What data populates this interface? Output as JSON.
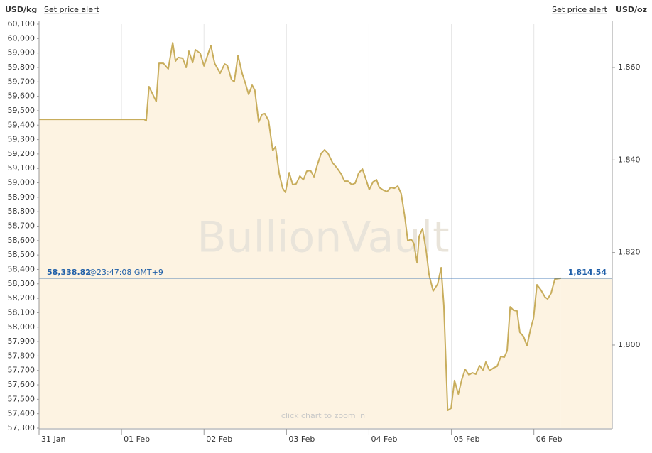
{
  "header": {
    "left_unit": "USD/kg",
    "left_link": "Set price alert",
    "right_link": "Set price alert",
    "right_unit": "USD/oz"
  },
  "watermark": "BullionVault",
  "hint": "click chart to zoom in",
  "chart_data": {
    "type": "line",
    "color": "#c8ad5c",
    "area_color": "#fdf3e2",
    "grid": "x",
    "x": [
      0,
      30.6,
      31.2,
      32.0,
      34.1,
      34.9,
      36.2,
      37.6,
      38.9,
      39.7,
      40.5,
      41.8,
      42.8,
      43.6,
      44.7,
      45.5,
      46.9,
      48.0,
      50.0,
      51.1,
      52.7,
      54.0,
      54.8,
      56.0,
      56.8,
      57.9,
      59.1,
      59.9,
      61.0,
      62.0,
      62.8,
      63.9,
      64.9,
      65.7,
      66.8,
      68.0,
      68.8,
      69.9,
      70.9,
      71.7,
      72.8,
      73.8,
      74.8,
      75.9,
      76.9,
      77.9,
      79.0,
      80.0,
      81.0,
      82.1,
      83.1,
      84.1,
      85.4,
      86.6,
      87.9,
      88.9,
      89.9,
      91.0,
      92.0,
      93.0,
      94.1,
      95.1,
      96.1,
      97.2,
      98.2,
      99.0,
      100.3,
      101.3,
      102.3,
      103.4,
      104.4,
      105.4,
      106.5,
      107.3,
      108.3,
      109.1,
      110.0,
      110.6,
      111.6,
      112.7,
      113.5,
      114.7,
      116.0,
      117.0,
      117.8,
      118.9,
      119.9,
      120.9,
      122.0,
      123.0,
      124.0,
      125.1,
      126.1,
      127.1,
      128.2,
      129.2,
      130.0,
      131.1,
      132.3,
      133.3,
      134.4,
      135.4,
      136.2,
      137.1,
      138.1,
      139.1,
      139.9,
      141.0,
      142.0,
      143.0,
      143.9,
      144.9,
      146.0,
      147.2,
      148.0,
      149.0,
      150.1,
      151.9
    ],
    "values": [
      59440,
      59440,
      59430,
      59667,
      59564,
      59829,
      59829,
      59790,
      59972,
      59844,
      59869,
      59864,
      59800,
      59913,
      59834,
      59923,
      59898,
      59810,
      59952,
      59829,
      59760,
      59824,
      59814,
      59716,
      59701,
      59883,
      59760,
      59701,
      59613,
      59677,
      59642,
      59421,
      59475,
      59480,
      59431,
      59224,
      59249,
      59062,
      58963,
      58934,
      59071,
      58988,
      58993,
      59047,
      59022,
      59081,
      59086,
      59042,
      59126,
      59204,
      59229,
      59204,
      59140,
      59106,
      59062,
      59012,
      59012,
      58988,
      58998,
      59067,
      59096,
      59027,
      58953,
      59007,
      59022,
      58968,
      58948,
      58939,
      58968,
      58963,
      58978,
      58924,
      58752,
      58599,
      58609,
      58579,
      58446,
      58629,
      58683,
      58520,
      58363,
      58250,
      58299,
      58412,
      58151,
      57423,
      57438,
      57630,
      57536,
      57635,
      57708,
      57669,
      57684,
      57674,
      57733,
      57703,
      57758,
      57698,
      57718,
      57728,
      57797,
      57792,
      57836,
      58141,
      58117,
      58112,
      57964,
      57935,
      57871,
      57984,
      58063,
      58294,
      58259,
      58210,
      58195,
      58235,
      58333,
      58338.82
    ],
    "xlim": [
      0,
      166.8
    ],
    "xticks": [
      {
        "value": 0,
        "label": "31 Jan"
      },
      {
        "value": 24,
        "label": "01 Feb"
      },
      {
        "value": 48,
        "label": "02 Feb"
      },
      {
        "value": 72,
        "label": "03 Feb"
      },
      {
        "value": 96,
        "label": "04 Feb"
      },
      {
        "value": 120,
        "label": "05 Feb"
      },
      {
        "value": 144,
        "label": "06 Feb"
      }
    ],
    "ylim": [
      57300,
      60100
    ],
    "yticks": [
      {
        "value": 57300,
        "label": "57,300"
      },
      {
        "value": 57400,
        "label": "57,400"
      },
      {
        "value": 57500,
        "label": "57,500"
      },
      {
        "value": 57600,
        "label": "57,600"
      },
      {
        "value": 57700,
        "label": "57,700"
      },
      {
        "value": 57800,
        "label": "57,800"
      },
      {
        "value": 57900,
        "label": "57,900"
      },
      {
        "value": 58000,
        "label": "58,000"
      },
      {
        "value": 58100,
        "label": "58,100"
      },
      {
        "value": 58200,
        "label": "58,200"
      },
      {
        "value": 58300,
        "label": "58,300"
      },
      {
        "value": 58400,
        "label": "58,400"
      },
      {
        "value": 58500,
        "label": "58,500"
      },
      {
        "value": 58600,
        "label": "58,600"
      },
      {
        "value": 58700,
        "label": "58,700"
      },
      {
        "value": 58800,
        "label": "58,800"
      },
      {
        "value": 58900,
        "label": "58,900"
      },
      {
        "value": 59000,
        "label": "59,000"
      },
      {
        "value": 59100,
        "label": "59,100"
      },
      {
        "value": 59200,
        "label": "59,200"
      },
      {
        "value": 59300,
        "label": "59,300"
      },
      {
        "value": 59400,
        "label": "59,400"
      },
      {
        "value": 59500,
        "label": "59,500"
      },
      {
        "value": 59600,
        "label": "59,600"
      },
      {
        "value": 59700,
        "label": "59,700"
      },
      {
        "value": 59800,
        "label": "59,800"
      },
      {
        "value": 59900,
        "label": "59,900"
      },
      {
        "value": 60000,
        "label": "60,000"
      },
      {
        "value": 60100,
        "label": "60,100"
      }
    ],
    "y2lim": [
      1782.04,
      1869.36
    ],
    "y2ticks": [
      {
        "value": 1800,
        "label": "1,800"
      },
      {
        "value": 1820,
        "label": "1,820"
      },
      {
        "value": 1840,
        "label": "1,840"
      },
      {
        "value": 1860,
        "label": "1,860"
      }
    ],
    "current_price": {
      "value": 58338.82,
      "label": "58,338.82",
      "time": "@23:47:08 GMT+9",
      "value_oz": 1814.54,
      "label_oz": "1,814.54",
      "color": "#1f5fa8"
    }
  }
}
